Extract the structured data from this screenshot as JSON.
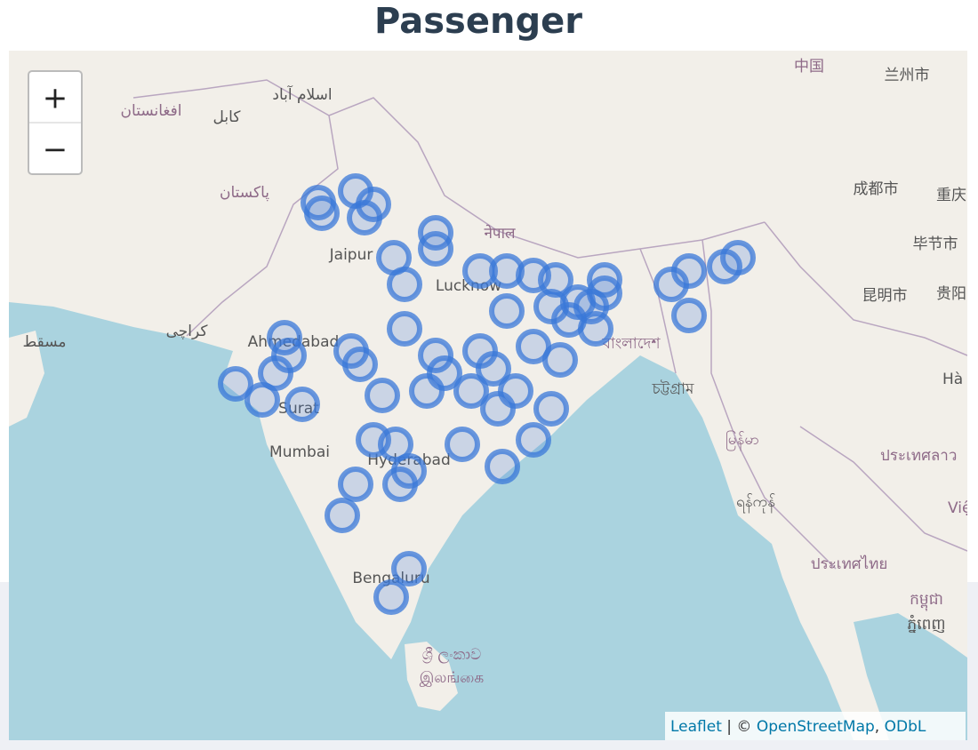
{
  "header": {
    "title": "Passenger"
  },
  "zoom": {
    "in": "+",
    "out": "−"
  },
  "map": {
    "labels": [
      "中国",
      "兰州市",
      "افغانستان",
      "کابل",
      "اسلام آباد",
      "پاکستان",
      "Jaipur",
      "नेपाल",
      "Lucknow",
      "کراچی",
      "مسقط",
      "Ahmedabad",
      "বাংলাদেশ",
      "চট্টগ্রাম",
      "Surat",
      "Mumbai",
      "Hyderabad",
      "Bengaluru",
      "ශ්‍රී ලංකාව",
      "இலங்கை",
      "成都市",
      "重庆",
      "毕节市",
      "昆明市",
      "贵阳",
      "Hà Nội",
      "မြန်မာ",
      "ရန်ကုန်",
      "ประเทศลาว",
      "Việt Nam",
      "ประเทศไทย",
      "កម្ពុជា",
      "ភ្នំពេញ"
    ]
  },
  "attribution": {
    "leaflet": "Leaflet",
    "separator": "| ©",
    "osm": "OpenStreetMap",
    "comma": ",",
    "license": "ODbL"
  }
}
